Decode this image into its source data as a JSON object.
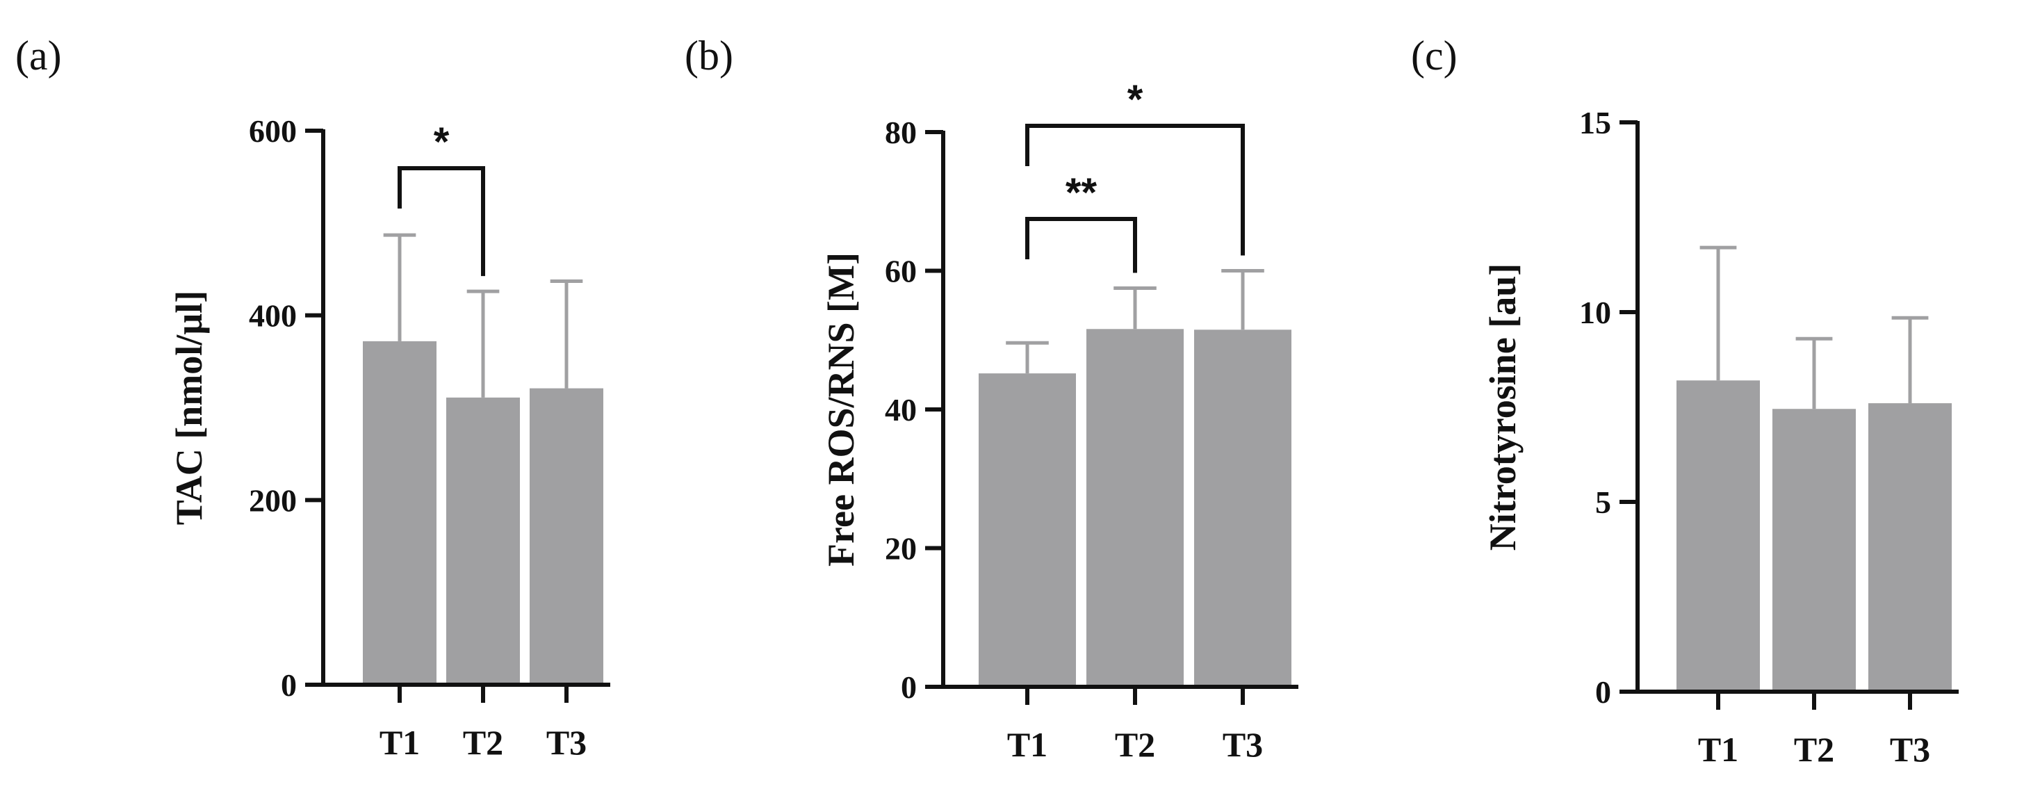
{
  "figure": {
    "bar_color": "#a0a0a2",
    "error_color": "#a0a0a2",
    "axis_color": "#111111"
  },
  "chart_data": [
    {
      "type": "bar",
      "panel_label": "(a)",
      "ylabel": "TAC [nmol/µl]",
      "xlabel": "",
      "categories": [
        "T1",
        "T2",
        "T3"
      ],
      "values": [
        372,
        311,
        321
      ],
      "errors": [
        115,
        115,
        116
      ],
      "ylim": [
        0,
        600
      ],
      "yticks": [
        0,
        200,
        400,
        600
      ],
      "grid": false,
      "significance": [
        {
          "from": "T1",
          "to": "T2",
          "label": "*"
        }
      ]
    },
    {
      "type": "bar",
      "panel_label": "(b)",
      "ylabel": "Free  ROS/RNS [M]",
      "xlabel": "",
      "categories": [
        "T1",
        "T2",
        "T3"
      ],
      "values": [
        45.2,
        51.6,
        51.5
      ],
      "errors": [
        4.4,
        5.9,
        8.5
      ],
      "ylim": [
        0,
        80
      ],
      "yticks": [
        0,
        20,
        40,
        60,
        80
      ],
      "grid": false,
      "significance": [
        {
          "from": "T1",
          "to": "T2",
          "label": "**"
        },
        {
          "from": "T1",
          "to": "T3",
          "label": "*"
        }
      ]
    },
    {
      "type": "bar",
      "panel_label": "(c)",
      "ylabel": "Nitrotyrosine [au]",
      "xlabel": "",
      "categories": [
        "T1",
        "T2",
        "T3"
      ],
      "values": [
        8.2,
        7.45,
        7.6
      ],
      "errors": [
        3.5,
        1.85,
        2.25
      ],
      "ylim": [
        0,
        15
      ],
      "yticks": [
        0,
        5,
        10,
        15
      ],
      "grid": false,
      "significance": []
    }
  ]
}
